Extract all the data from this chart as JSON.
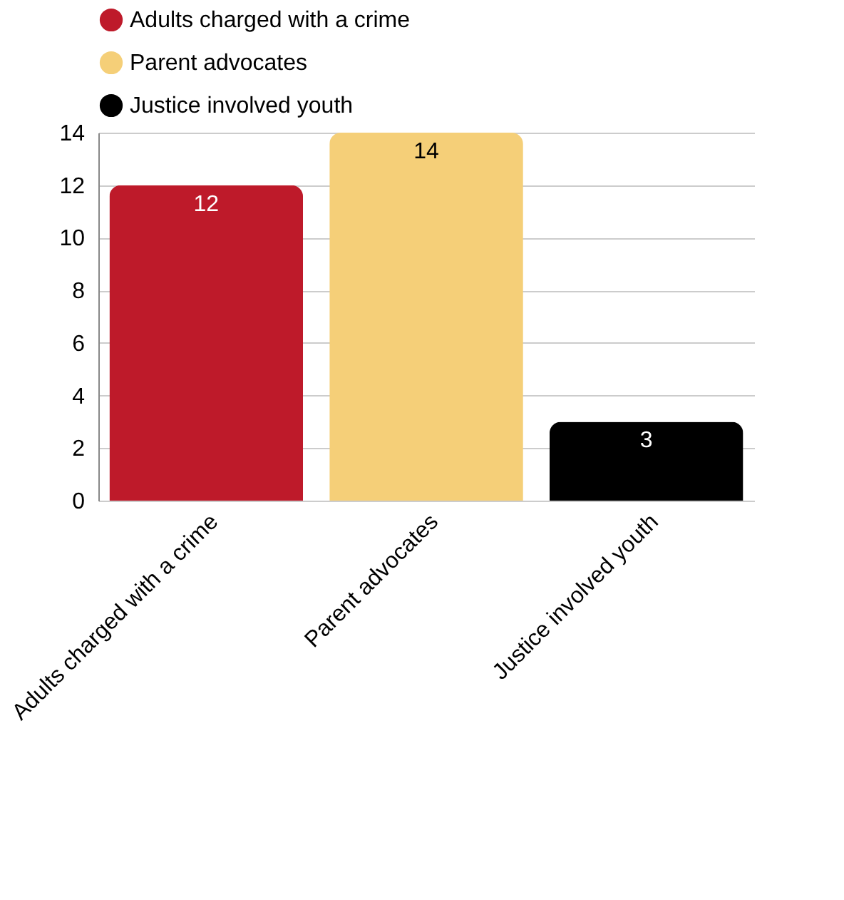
{
  "chart_data": {
    "type": "bar",
    "categories": [
      "Adults charged with a crime",
      "Parent advocates",
      "Justice involved youth"
    ],
    "series": [
      {
        "name": "Adults charged with a crime",
        "color": "#be1a2a",
        "values": [
          12,
          null,
          null
        ]
      },
      {
        "name": "Parent advocates",
        "color": "#f5cf78",
        "values": [
          null,
          14,
          null
        ]
      },
      {
        "name": "Justice involved youth",
        "color": "#000000",
        "values": [
          null,
          null,
          3
        ]
      }
    ],
    "stacked": true,
    "ylim": [
      0,
      14
    ],
    "yticks": [
      0,
      2,
      4,
      6,
      8,
      10,
      12,
      14
    ],
    "grid": "y",
    "legend": "top",
    "data_labels": true
  }
}
